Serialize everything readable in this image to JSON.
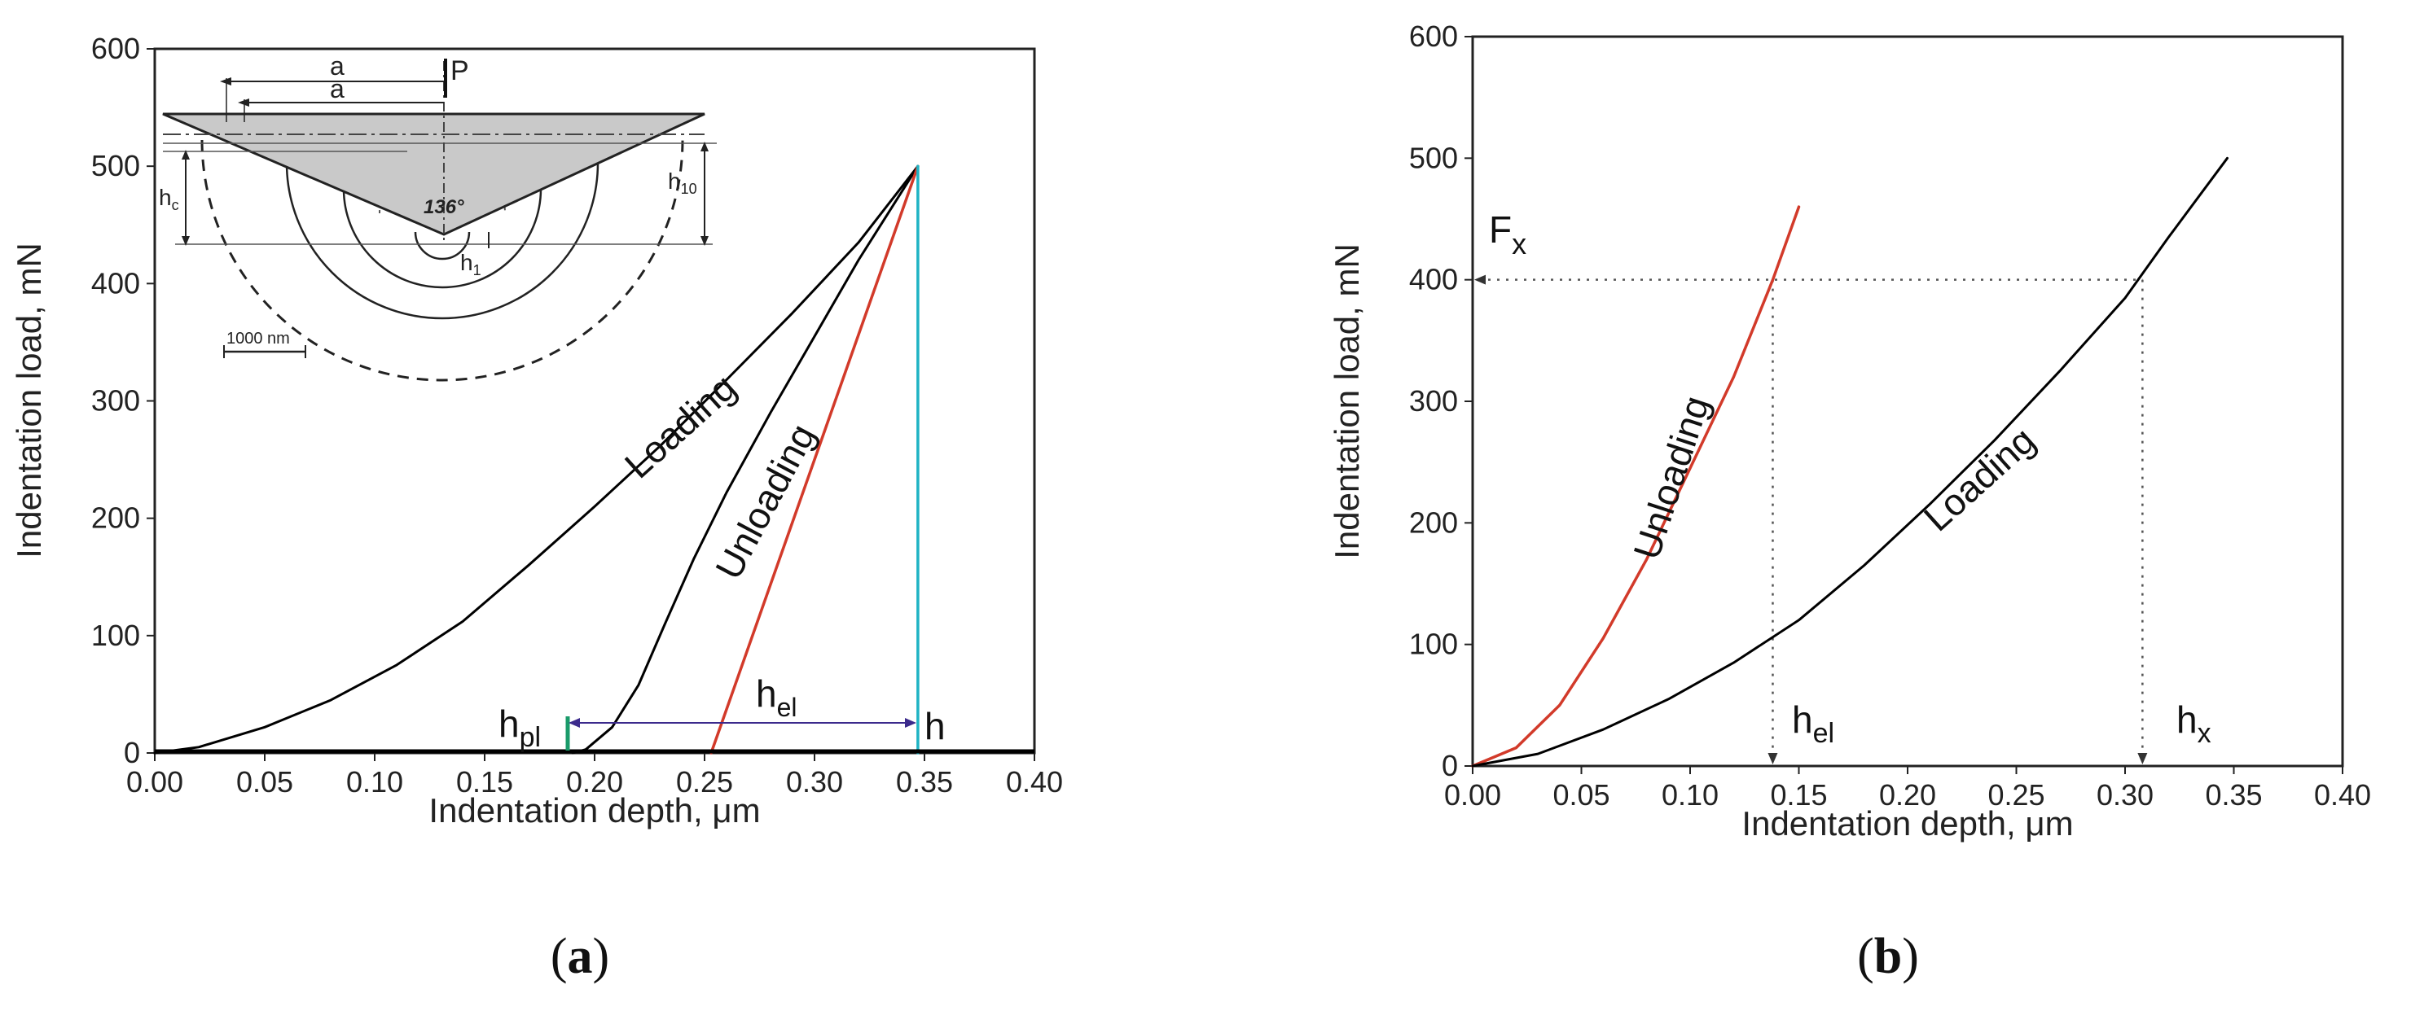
{
  "chart_data": [
    {
      "panel": "a",
      "type": "line",
      "xlabel": "Indentation depth, μm",
      "ylabel": "Indentation load, mN",
      "xlim": [
        0,
        0.4
      ],
      "ylim": [
        0,
        600
      ],
      "xticks": [
        "0.00",
        "0.05",
        "0.10",
        "0.15",
        "0.20",
        "0.25",
        "0.30",
        "0.35",
        "0.40"
      ],
      "yticks": [
        "0",
        "100",
        "200",
        "300",
        "400",
        "500",
        "600"
      ],
      "series": [
        {
          "name": "Loading",
          "color": "#000000",
          "points": [
            [
              0,
              0
            ],
            [
              0.02,
              5
            ],
            [
              0.05,
              22
            ],
            [
              0.08,
              45
            ],
            [
              0.11,
              75
            ],
            [
              0.14,
              112
            ],
            [
              0.17,
              160
            ],
            [
              0.2,
              210
            ],
            [
              0.23,
              262
            ],
            [
              0.26,
              318
            ],
            [
              0.29,
              375
            ],
            [
              0.32,
              435
            ],
            [
              0.347,
              500
            ]
          ]
        },
        {
          "name": "Unloading",
          "color": "#000000",
          "points": [
            [
              0.347,
              500
            ],
            [
              0.32,
              420
            ],
            [
              0.3,
              355
            ],
            [
              0.28,
              290
            ],
            [
              0.26,
              222
            ],
            [
              0.245,
              165
            ],
            [
              0.232,
              110
            ],
            [
              0.22,
              58
            ],
            [
              0.208,
              22
            ],
            [
              0.196,
              3
            ],
            [
              0.19,
              0
            ]
          ]
        },
        {
          "name": "Tangent",
          "color": "#d23a2a",
          "points": [
            [
              0.253,
              0
            ],
            [
              0.347,
              500
            ]
          ]
        },
        {
          "name": "Maximum depth line",
          "color": "#1eb3c4",
          "points": [
            [
              0.347,
              0
            ],
            [
              0.347,
              500
            ]
          ]
        }
      ],
      "annotations": {
        "loading_label": "Loading",
        "unloading_label": "Unloading",
        "h_pl": {
          "base": "h",
          "sub": "pl",
          "color": "#1a9b6a"
        },
        "h_el": {
          "base": "h",
          "sub": "el",
          "color": "#3b2a8c"
        },
        "h": {
          "text": "h",
          "color": "#1eb3c4"
        }
      },
      "inset": {
        "load_label": "P",
        "radius_label": "a",
        "angle_label": "136°",
        "hc_label": {
          "base": "h",
          "sub": "c"
        },
        "h10_label": {
          "base": "h",
          "sub": "10"
        },
        "h1_label": {
          "base": "h",
          "sub": "1"
        },
        "scale_label": "1000 nm"
      }
    },
    {
      "panel": "b",
      "type": "line",
      "xlabel": "Indentation depth, μm",
      "ylabel": "Indentation load, mN",
      "xlim": [
        0,
        0.4
      ],
      "ylim": [
        0,
        600
      ],
      "xticks": [
        "0.00",
        "0.05",
        "0.10",
        "0.15",
        "0.20",
        "0.25",
        "0.30",
        "0.35",
        "0.40"
      ],
      "yticks": [
        "0",
        "100",
        "200",
        "300",
        "400",
        "500",
        "600"
      ],
      "series": [
        {
          "name": "Unloading",
          "color": "#d23a2a",
          "points": [
            [
              0,
              0
            ],
            [
              0.02,
              15
            ],
            [
              0.04,
              50
            ],
            [
              0.06,
              105
            ],
            [
              0.08,
              170
            ],
            [
              0.1,
              245
            ],
            [
              0.12,
              320
            ],
            [
              0.138,
              400
            ],
            [
              0.15,
              460
            ]
          ]
        },
        {
          "name": "Loading",
          "color": "#000000",
          "points": [
            [
              0,
              0
            ],
            [
              0.03,
              10
            ],
            [
              0.06,
              30
            ],
            [
              0.09,
              55
            ],
            [
              0.12,
              85
            ],
            [
              0.15,
              120
            ],
            [
              0.18,
              165
            ],
            [
              0.21,
              215
            ],
            [
              0.24,
              268
            ],
            [
              0.27,
              325
            ],
            [
              0.3,
              385
            ],
            [
              0.32,
              435
            ],
            [
              0.347,
              500
            ]
          ]
        }
      ],
      "guides": {
        "Fx": 400,
        "h_el": 0.138,
        "h_x": 0.308
      },
      "annotations": {
        "loading_label": "Loading",
        "unloading_label": "Unloading",
        "F_x": {
          "base": "F",
          "sub": "x"
        },
        "h_el": {
          "base": "h",
          "sub": "el"
        },
        "h_x": {
          "base": "h",
          "sub": "x"
        }
      }
    }
  ],
  "panel_labels": {
    "a": "a",
    "b": "b"
  }
}
